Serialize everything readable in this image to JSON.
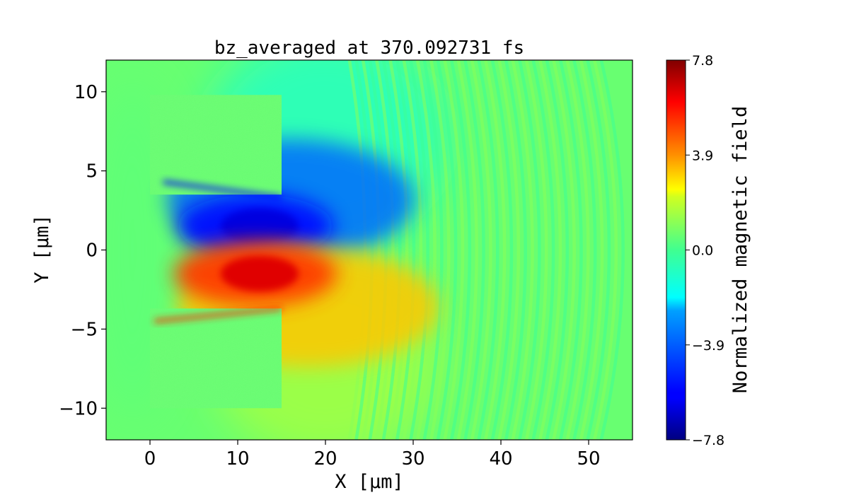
{
  "chart_data": {
    "type": "heatmap",
    "title": "bz_averaged at 370.092731 fs",
    "xlabel": "X [μm]",
    "ylabel": "Y [μm]",
    "xlim": [
      -5,
      55
    ],
    "ylim": [
      -12,
      12
    ],
    "xticks": [
      0,
      10,
      20,
      30,
      40,
      50
    ],
    "yticks": [
      -10,
      -5,
      0,
      5,
      10
    ],
    "xtick_labels": [
      "0",
      "10",
      "20",
      "30",
      "40",
      "50"
    ],
    "ytick_labels": [
      "−10",
      "−5",
      "0",
      "5",
      "10"
    ],
    "colormap": "jet",
    "colorbar": {
      "label": "Normalized magnetic field",
      "range": [
        -7.8,
        7.8
      ],
      "ticks": [
        7.8,
        3.9,
        0.0,
        -3.9,
        -7.8
      ],
      "tick_labels": [
        "7.8",
        "3.9",
        "0.0",
        "−3.9",
        "−7.8"
      ]
    },
    "features": {
      "targets": [
        {
          "name": "upper slab",
          "x_range": [
            0,
            15
          ],
          "y_range": [
            3.5,
            9.8
          ],
          "value": 0.6
        },
        {
          "name": "lower slab",
          "x_range": [
            0,
            15
          ],
          "y_range": [
            -10,
            -3.7
          ],
          "value": 0.6
        }
      ],
      "negative_lobe": {
        "center": [
          12,
          1.5
        ],
        "peak_value": -6.5
      },
      "positive_lobe": {
        "center": [
          12,
          -1.5
        ],
        "peak_value": 6.5
      },
      "background_value": 0.6,
      "wave_fronts": {
        "x_start": 25,
        "x_end": 55,
        "wavelength": 0.8
      }
    }
  }
}
